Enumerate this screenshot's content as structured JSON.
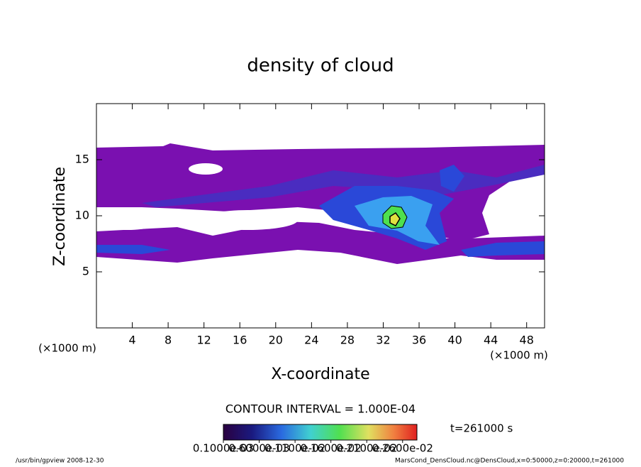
{
  "chart_data": {
    "type": "contour",
    "title": "density of cloud",
    "xlabel": "X-coordinate",
    "ylabel": "Z-coordinate",
    "x_unit": "(×1000 m)",
    "y_unit": "(×1000 m)",
    "xlim": [
      0,
      50
    ],
    "ylim": [
      0,
      20
    ],
    "xticks": [
      4,
      8,
      12,
      16,
      20,
      24,
      28,
      32,
      36,
      40,
      44,
      48
    ],
    "yticks": [
      5,
      10,
      15
    ],
    "contour_interval": "CONTOUR INTERVAL = 1.000E-04",
    "time_label": "t=261000 s",
    "colorbar": {
      "clim": [
        0.0001,
        0.0028
      ],
      "ticks": [
        {
          "value": 0.0001,
          "label": "0.1000e-03"
        },
        {
          "value": 0.0006,
          "label": "0.6000e-03"
        },
        {
          "value": 0.0011,
          "label": "0.1100e-02"
        },
        {
          "value": 0.0016,
          "label": "0.1600e-02"
        },
        {
          "value": 0.0021,
          "label": "0.2100e-02"
        },
        {
          "value": 0.0026,
          "label": "0.2600e-02"
        }
      ]
    },
    "footer_left": "/usr/bin/gpview   2008-12-30",
    "footer_right": "MarsCond_DensCloud.nc@DensCloud,x=0:50000,z=0:20000,t=261000"
  }
}
